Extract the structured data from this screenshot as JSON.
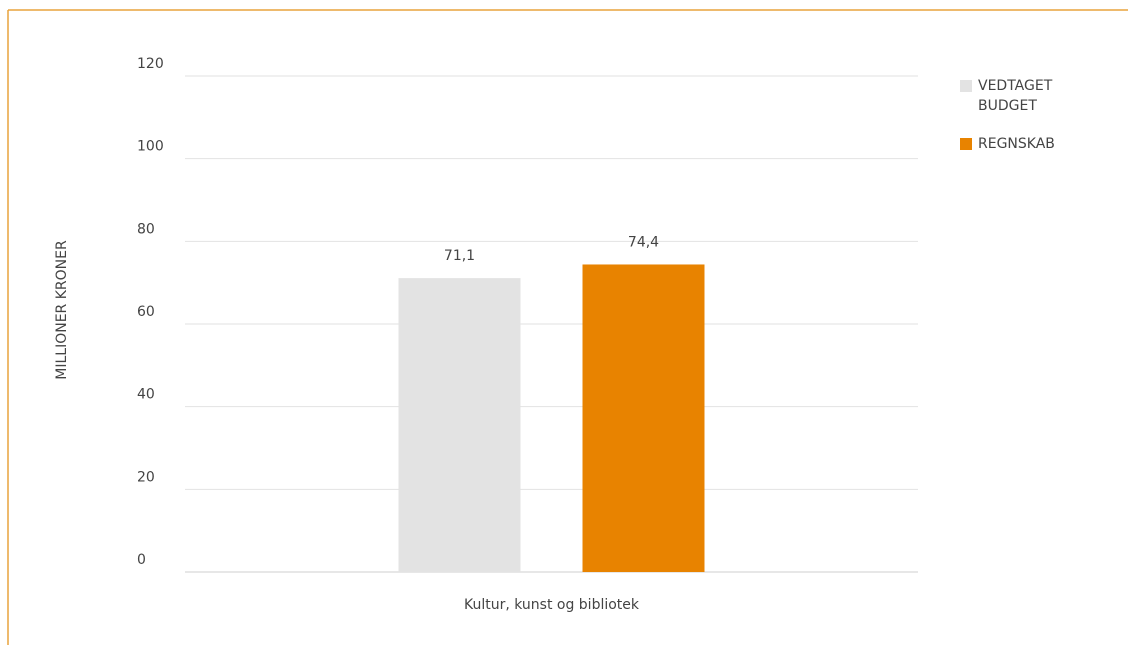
{
  "chart_data": {
    "type": "bar",
    "ylabel": "MILLIONER KRONER",
    "categories": [
      "Kultur, kunst og bibliotek"
    ],
    "series": [
      {
        "name": "VEDTAGET BUDGET",
        "color": "#e3e3e3",
        "values": [
          71.1
        ],
        "value_labels": [
          "71,1"
        ]
      },
      {
        "name": "REGNSKAB",
        "color": "#e88300",
        "values": [
          74.4
        ],
        "value_labels": [
          "74,4"
        ]
      }
    ],
    "ylim": [
      0,
      120
    ],
    "yticks": [
      0,
      20,
      40,
      60,
      80,
      100,
      120
    ],
    "grid": true,
    "legend": "right"
  }
}
